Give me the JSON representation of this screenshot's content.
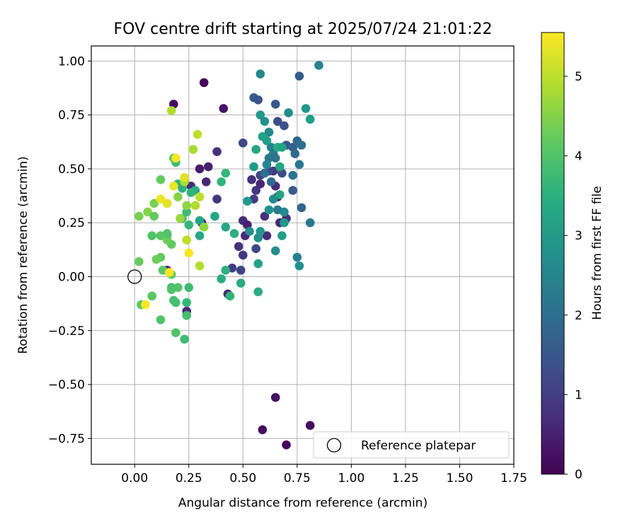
{
  "chart_data": {
    "type": "scatter",
    "title": "FOV centre drift starting at 2025/07/24 21:01:22",
    "xlabel": "Angular distance from reference (arcmin)",
    "ylabel": "Rotation from reference (arcmin)",
    "xlim": [
      -0.2,
      1.75
    ],
    "ylim": [
      -0.87,
      1.07
    ],
    "xticks": [
      "0.00",
      "0.25",
      "0.50",
      "0.75",
      "1.00",
      "1.25",
      "1.50",
      "1.75"
    ],
    "xtick_values": [
      0,
      0.25,
      0.5,
      0.75,
      1.0,
      1.25,
      1.5,
      1.75
    ],
    "yticks": [
      "1.00",
      "0.75",
      "0.50",
      "0.25",
      "0.00",
      "−0.25",
      "−0.50",
      "−0.75"
    ],
    "ytick_values": [
      1.0,
      0.75,
      0.5,
      0.25,
      0,
      -0.25,
      -0.5,
      -0.75
    ],
    "grid": true,
    "colorbar": {
      "label": "Hours from first FF file",
      "colormap": "viridis",
      "range": [
        0,
        5.55
      ],
      "ticks": [
        "0",
        "1",
        "2",
        "3",
        "4",
        "5"
      ],
      "tick_values": [
        0,
        1,
        2,
        3,
        4,
        5
      ]
    },
    "reference": {
      "x": 0.0,
      "y": 0.0
    },
    "legend": {
      "position": "lower-right",
      "entries": [
        "Reference platepar"
      ]
    },
    "points": [
      [
        0.32,
        0.9,
        0.1
      ],
      [
        0.18,
        0.8,
        0.2
      ],
      [
        0.41,
        0.78,
        0.3
      ],
      [
        0.59,
        -0.71,
        0.2
      ],
      [
        0.7,
        -0.78,
        0.1
      ],
      [
        0.81,
        -0.69,
        0.2
      ],
      [
        0.65,
        -0.56,
        0.3
      ],
      [
        0.3,
        0.5,
        0.4
      ],
      [
        0.34,
        0.51,
        0.5
      ],
      [
        0.33,
        0.44,
        0.6
      ],
      [
        0.26,
        0.42,
        0.7
      ],
      [
        0.31,
        0.25,
        0.5
      ],
      [
        0.38,
        0.58,
        0.8
      ],
      [
        0.5,
        0.26,
        0.7
      ],
      [
        0.51,
        0.19,
        0.6
      ],
      [
        0.52,
        0.24,
        0.5
      ],
      [
        0.48,
        0.14,
        0.8
      ],
      [
        0.5,
        0.1,
        0.9
      ],
      [
        0.45,
        0.04,
        1.0
      ],
      [
        0.49,
        0.03,
        1.1
      ],
      [
        0.43,
        -0.08,
        0.7
      ],
      [
        0.24,
        -0.16,
        0.6
      ],
      [
        0.15,
        0.03,
        0.5
      ],
      [
        0.38,
        0.36,
        0.9
      ],
      [
        0.54,
        0.45,
        0.8
      ],
      [
        0.56,
        0.4,
        0.9
      ],
      [
        0.58,
        0.43,
        0.6
      ],
      [
        0.6,
        0.28,
        0.8
      ],
      [
        0.61,
        0.19,
        0.7
      ],
      [
        0.64,
        0.49,
        0.9
      ],
      [
        0.65,
        0.42,
        0.7
      ],
      [
        0.66,
        0.37,
        0.5
      ],
      [
        0.67,
        0.25,
        0.6
      ],
      [
        0.7,
        0.27,
        0.8
      ],
      [
        0.55,
        0.36,
        1.0
      ],
      [
        0.58,
        0.47,
        1.1
      ],
      [
        0.62,
        0.49,
        1.2
      ],
      [
        0.68,
        0.48,
        1.3
      ],
      [
        0.56,
        0.13,
        1.2
      ],
      [
        0.5,
        0.62,
        1.2
      ],
      [
        0.55,
        0.83,
        1.6
      ],
      [
        0.57,
        0.82,
        1.4
      ],
      [
        0.65,
        0.8,
        1.5
      ],
      [
        0.66,
        0.72,
        1.3
      ],
      [
        0.69,
        0.7,
        1.4
      ],
      [
        0.76,
        0.93,
        1.6
      ],
      [
        0.85,
        0.98,
        2.5
      ],
      [
        0.58,
        0.94,
        2.6
      ],
      [
        0.71,
        0.76,
        2.7
      ],
      [
        0.7,
        0.61,
        1.5
      ],
      [
        0.73,
        0.6,
        1.7
      ],
      [
        0.75,
        0.63,
        1.8
      ],
      [
        0.77,
        0.61,
        2.0
      ],
      [
        0.74,
        0.57,
        1.9
      ],
      [
        0.76,
        0.52,
        2.2
      ],
      [
        0.73,
        0.47,
        2.1
      ],
      [
        0.73,
        0.4,
        1.6
      ],
      [
        0.77,
        0.32,
        1.8
      ],
      [
        0.81,
        0.25,
        2.2
      ],
      [
        0.75,
        0.09,
        2.4
      ],
      [
        0.76,
        0.05,
        2.8
      ],
      [
        0.79,
        0.78,
        3.0
      ],
      [
        0.81,
        0.73,
        3.1
      ],
      [
        0.58,
        0.75,
        2.9
      ],
      [
        0.6,
        0.72,
        2.8
      ],
      [
        0.62,
        0.67,
        2.6
      ],
      [
        0.63,
        0.6,
        2.4
      ],
      [
        0.64,
        0.57,
        2.3
      ],
      [
        0.62,
        0.55,
        2.2
      ],
      [
        0.61,
        0.52,
        2.5
      ],
      [
        0.65,
        0.55,
        2.1
      ],
      [
        0.6,
        0.48,
        2.0
      ],
      [
        0.63,
        0.44,
        1.9
      ],
      [
        0.64,
        0.36,
        2.7
      ],
      [
        0.62,
        0.31,
        2.8
      ],
      [
        0.66,
        0.31,
        2.3
      ],
      [
        0.69,
        0.3,
        2.6
      ],
      [
        0.69,
        0.25,
        3.0
      ],
      [
        0.65,
        0.12,
        2.7
      ],
      [
        0.59,
        0.65,
        3.2
      ],
      [
        0.61,
        0.63,
        3.1
      ],
      [
        0.66,
        0.6,
        3.4
      ],
      [
        0.68,
        0.6,
        3.2
      ],
      [
        0.67,
        0.51,
        3.3
      ],
      [
        0.67,
        0.38,
        3.2
      ],
      [
        0.68,
        0.19,
        3.1
      ],
      [
        0.55,
        0.51,
        3.0
      ],
      [
        0.56,
        0.59,
        3.3
      ],
      [
        0.58,
        0.21,
        2.9
      ],
      [
        0.53,
        0.21,
        2.7
      ],
      [
        0.52,
        0.35,
        3.0
      ],
      [
        0.57,
        0.18,
        2.8
      ],
      [
        0.57,
        0.06,
        3.2
      ],
      [
        0.57,
        -0.07,
        3.4
      ],
      [
        0.49,
        -0.03,
        3.4
      ],
      [
        0.44,
        -0.09,
        3.6
      ],
      [
        0.42,
        0.03,
        3.5
      ],
      [
        0.4,
        -0.01,
        3.4
      ],
      [
        0.42,
        0.23,
        3.3
      ],
      [
        0.46,
        0.2,
        3.5
      ],
      [
        0.37,
        0.28,
        3.3
      ],
      [
        0.4,
        0.44,
        3.6
      ],
      [
        0.42,
        0.48,
        3.7
      ],
      [
        0.3,
        0.26,
        3.2
      ],
      [
        0.3,
        0.19,
        3.3
      ],
      [
        0.28,
        0.4,
        3.4
      ],
      [
        0.26,
        0.39,
        3.6
      ],
      [
        0.25,
        0.24,
        3.7
      ],
      [
        0.22,
        0.27,
        3.9
      ],
      [
        0.24,
        0.3,
        3.8
      ],
      [
        0.22,
        0.41,
        3.5
      ],
      [
        0.2,
        0.43,
        3.6
      ],
      [
        0.19,
        0.53,
        3.8
      ],
      [
        0.18,
        0.55,
        4.0
      ],
      [
        0.25,
        -0.05,
        3.8
      ],
      [
        0.24,
        -0.12,
        3.7
      ],
      [
        0.24,
        -0.18,
        3.9
      ],
      [
        0.23,
        -0.29,
        3.8
      ],
      [
        0.19,
        -0.12,
        3.9
      ],
      [
        0.17,
        -0.05,
        3.9
      ],
      [
        0.17,
        -0.06,
        4.0
      ],
      [
        0.2,
        -0.05,
        4.0
      ],
      [
        0.18,
        -0.11,
        3.9
      ],
      [
        0.19,
        -0.26,
        4.0
      ],
      [
        0.12,
        -0.2,
        4.0
      ],
      [
        0.08,
        -0.09,
        4.1
      ],
      [
        0.03,
        -0.13,
        4.1
      ],
      [
        0.17,
        0.01,
        4.2
      ],
      [
        0.13,
        0.03,
        4.1
      ],
      [
        0.12,
        0.09,
        4.2
      ],
      [
        0.1,
        0.08,
        4.3
      ],
      [
        0.08,
        0.19,
        4.0
      ],
      [
        0.12,
        0.19,
        4.1
      ],
      [
        0.15,
        0.19,
        4.2
      ],
      [
        0.15,
        0.17,
        4.3
      ],
      [
        0.17,
        0.15,
        4.2
      ],
      [
        0.15,
        0.2,
        4.0
      ],
      [
        0.02,
        0.07,
        4.2
      ],
      [
        0.02,
        0.28,
        4.4
      ],
      [
        0.06,
        0.3,
        4.5
      ],
      [
        0.09,
        0.28,
        4.2
      ],
      [
        0.09,
        0.34,
        4.4
      ],
      [
        0.12,
        0.45,
        4.2
      ],
      [
        0.15,
        0.34,
        4.6
      ],
      [
        0.2,
        0.37,
        4.5
      ],
      [
        0.21,
        0.27,
        4.7
      ],
      [
        0.24,
        0.33,
        4.6
      ],
      [
        0.23,
        0.44,
        4.8
      ],
      [
        0.27,
        0.59,
        4.8
      ],
      [
        0.29,
        0.66,
        5.0
      ],
      [
        0.17,
        0.77,
        4.9
      ],
      [
        0.3,
        0.05,
        4.9
      ],
      [
        0.32,
        0.23,
        4.6
      ],
      [
        0.3,
        0.37,
        5.0
      ],
      [
        0.28,
        0.33,
        4.9
      ],
      [
        0.24,
        0.17,
        5.0
      ],
      [
        0.19,
        0.55,
        5.5
      ],
      [
        0.18,
        0.42,
        5.4
      ],
      [
        0.15,
        0.34,
        5.3
      ],
      [
        0.12,
        0.36,
        5.4
      ],
      [
        0.23,
        0.46,
        5.3
      ],
      [
        0.25,
        0.11,
        5.5
      ],
      [
        0.16,
        0.02,
        5.5
      ],
      [
        0.05,
        -0.13,
        5.5
      ]
    ]
  }
}
